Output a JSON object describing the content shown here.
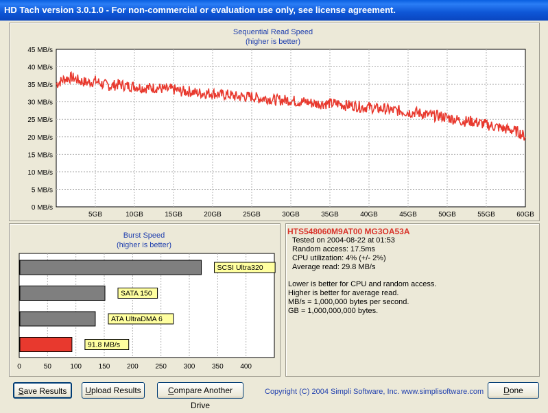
{
  "window": {
    "title": "HD Tach version 3.0.1.0  - For non-commercial or evaluation use only, see license agreement."
  },
  "colors": {
    "line": "#e8392e",
    "grid": "#b0b0b0",
    "bar_gray": "#7f7f7f",
    "bar_red": "#e8392e",
    "label_bg": "#ffffa0",
    "title_blue": "#1f3fae",
    "drive_red": "#d9342b"
  },
  "chart_data": [
    {
      "type": "line",
      "title": "Sequential Read Speed",
      "subtitle": "(higher is better)",
      "xlabel": "",
      "ylabel": "",
      "ylim": [
        0,
        45
      ],
      "xlim": [
        0,
        60
      ],
      "y_ticks": [
        "0 MB/s",
        "5 MB/s",
        "10 MB/s",
        "15 MB/s",
        "20 MB/s",
        "25 MB/s",
        "30 MB/s",
        "35 MB/s",
        "40 MB/s",
        "45 MB/s"
      ],
      "x_ticks": [
        "5GB",
        "10GB",
        "15GB",
        "20GB",
        "25GB",
        "30GB",
        "35GB",
        "40GB",
        "45GB",
        "50GB",
        "55GB",
        "60GB"
      ],
      "grid": true,
      "series": [
        {
          "x": [
            0,
            1,
            2,
            3,
            4,
            5,
            6,
            7,
            8,
            9,
            10,
            11,
            12,
            13,
            14,
            15,
            16,
            17,
            18,
            19,
            20,
            21,
            22,
            23,
            24,
            25,
            26,
            27,
            28,
            29,
            30,
            31,
            32,
            33,
            34,
            35,
            36,
            37,
            38,
            39,
            40,
            41,
            42,
            43,
            44,
            45,
            46,
            47,
            48,
            49,
            50,
            51,
            52,
            53,
            54,
            55,
            56,
            57,
            58,
            59,
            60
          ],
          "y": [
            35,
            36.5,
            37,
            36,
            35.5,
            36,
            35,
            34.5,
            35,
            34.5,
            34.5,
            34,
            34,
            34,
            33.5,
            33.5,
            33,
            33,
            32.5,
            32.5,
            32.5,
            32,
            32,
            31.5,
            31.5,
            31.5,
            31,
            31,
            30.5,
            30.5,
            30.5,
            30,
            30,
            29.5,
            29.5,
            29.5,
            29.5,
            29,
            29,
            28.5,
            28.5,
            28,
            28,
            27.5,
            27.5,
            27,
            27,
            26.5,
            26,
            26,
            25.5,
            25,
            24.5,
            24.5,
            24,
            23.5,
            23,
            22.5,
            22,
            21.5,
            20
          ]
        }
      ]
    },
    {
      "type": "bar",
      "orientation": "horizontal",
      "title": "Burst Speed",
      "subtitle": "(higher is better)",
      "xlabel": "",
      "ylabel": "",
      "xlim": [
        0,
        450
      ],
      "x_ticks": [
        "0",
        "50",
        "100",
        "150",
        "200",
        "250",
        "300",
        "350",
        "400"
      ],
      "grid": true,
      "bars": [
        {
          "label": "SCSI Ultra320",
          "value": 320,
          "color": "#7f7f7f"
        },
        {
          "label": "SATA 150",
          "value": 150,
          "color": "#7f7f7f"
        },
        {
          "label": "ATA UltraDMA 6",
          "value": 133,
          "color": "#7f7f7f"
        },
        {
          "label": "91.8 MB/s",
          "value": 91.8,
          "color": "#e8392e"
        }
      ]
    }
  ],
  "info": {
    "drive_name": "HTS548060M9AT00 MG3OA53A",
    "tested_on": "Tested on 2004-08-22 at 01:53",
    "random_access": "Random access: 17.5ms",
    "cpu_utilization": "CPU utilization: 4% (+/- 2%)",
    "average_read": "Average read: 29.8 MB/s",
    "note1": "Lower is better for CPU and random access.",
    "note2": "Higher is better for average read.",
    "note3": "MB/s = 1,000,000 bytes per second.",
    "note4": "GB = 1,000,000,000 bytes."
  },
  "buttons": {
    "save": {
      "first": "S",
      "rest": "ave Results"
    },
    "upload": {
      "first": "U",
      "rest": "pload Results"
    },
    "compare": {
      "first": "C",
      "rest": "ompare Another Drive"
    },
    "done": {
      "first": "D",
      "rest": "one"
    }
  },
  "copyright": "Copyright (C) 2004 Simpli Software, Inc. www.simplisoftware.com"
}
